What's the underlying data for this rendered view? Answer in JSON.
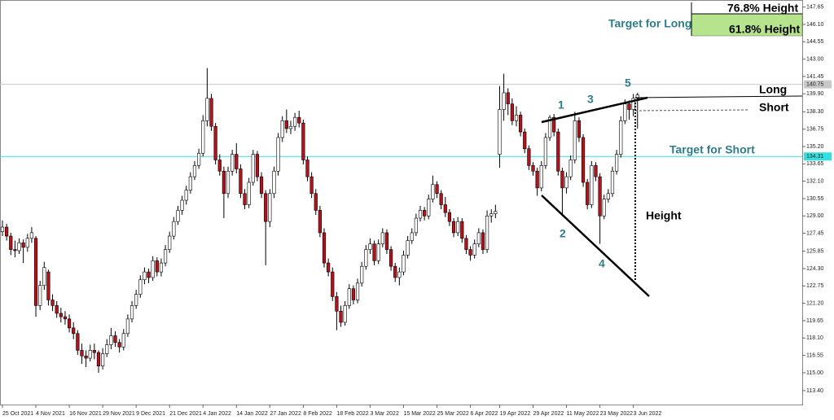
{
  "chart_data": {
    "type": "candlestick",
    "up_color": "#ffffff",
    "down_color": "#b5121b",
    "edge_color": "#000000",
    "ylim": [
      112.16,
      148.28
    ],
    "yticks": [
      147.65,
      {
        "value": 146.1,
        "label": "146.10"
      },
      144.55,
      {
        "value": 143,
        "label": "143.00"
      },
      141.45,
      {
        "value": 139.9,
        "label": "139.90"
      },
      {
        "value": 138.3,
        "label": "138.30"
      },
      136.75,
      {
        "value": 135.2,
        "label": "135.20"
      },
      133.65,
      {
        "value": 132.1,
        "label": "132.10"
      },
      130.55,
      {
        "value": 129,
        "label": "129.00"
      },
      127.45,
      125.85,
      {
        "value": 124.3,
        "label": "124.30"
      },
      122.75,
      {
        "value": 121.2,
        "label": "121.20"
      },
      119.65,
      {
        "value": 118.1,
        "label": "118.10"
      },
      116.55,
      {
        "value": 115,
        "label": "115.00"
      },
      {
        "value": 113.4,
        "label": "113.40"
      }
    ],
    "hlines": [
      {
        "value": 140.75,
        "color": "#c8c8c8"
      },
      {
        "value": 134.31,
        "color": "#33e0e0"
      }
    ],
    "categories": [
      "25 Oct 2021",
      null,
      null,
      null,
      null,
      null,
      null,
      null,
      "4 Nov 2021",
      null,
      null,
      null,
      null,
      null,
      null,
      null,
      "16 Nov 2021",
      null,
      null,
      null,
      null,
      null,
      null,
      null,
      "29 Nov 2021",
      null,
      null,
      null,
      null,
      null,
      null,
      null,
      "9 Dec 2021",
      null,
      null,
      null,
      null,
      null,
      null,
      null,
      "21 Dec 2021",
      null,
      null,
      null,
      null,
      null,
      null,
      null,
      "4 Jan 2022",
      null,
      null,
      null,
      null,
      null,
      null,
      null,
      "14 Jan 2022",
      null,
      null,
      null,
      null,
      null,
      null,
      null,
      "27 Jan 2022",
      null,
      null,
      null,
      null,
      null,
      null,
      null,
      "8 Feb 2022",
      null,
      null,
      null,
      null,
      null,
      null,
      null,
      "18 Feb 2022",
      null,
      null,
      null,
      null,
      null,
      null,
      null,
      "3 Mar 2022",
      null,
      null,
      null,
      null,
      null,
      null,
      null,
      "15 Mar 2022",
      null,
      null,
      null,
      null,
      null,
      null,
      null,
      "25 Mar 2022",
      null,
      null,
      null,
      null,
      null,
      null,
      null,
      "6 Apr 2022",
      null,
      null,
      null,
      null,
      null,
      null,
      "19 Apr 2022",
      null,
      null,
      null,
      null,
      null,
      null,
      null,
      "29 Apr 2022",
      null,
      null,
      null,
      null,
      null,
      null,
      null,
      "11 May 2022",
      null,
      null,
      null,
      null,
      null,
      null,
      null,
      "23 May 2022",
      null,
      null,
      null,
      null,
      null,
      null,
      null,
      "3 Jun 2022",
      null
    ],
    "ohlc": [
      [
        127.6,
        128.6,
        127.2,
        128.0
      ],
      [
        128.0,
        128.3,
        126.8,
        127.2
      ],
      [
        127.2,
        127.5,
        125.5,
        126.0
      ],
      [
        126.0,
        126.8,
        125.3,
        125.9
      ],
      [
        125.9,
        127.0,
        125.6,
        126.6
      ],
      [
        126.6,
        126.9,
        124.8,
        126.2
      ],
      [
        126.2,
        127.4,
        125.8,
        127.0
      ],
      [
        127.0,
        128.0,
        126.6,
        127.5
      ],
      [
        127.0,
        127.2,
        120.0,
        121.0
      ],
      [
        121.0,
        123.2,
        120.6,
        122.8
      ],
      [
        122.8,
        124.9,
        122.4,
        124.4
      ],
      [
        124.0,
        124.2,
        121.0,
        121.5
      ],
      [
        121.5,
        122.0,
        120.5,
        121.0
      ],
      [
        121.0,
        121.4,
        119.9,
        120.3
      ],
      [
        120.3,
        120.8,
        119.5,
        120.0
      ],
      [
        120.0,
        120.5,
        119.3,
        119.8
      ],
      [
        119.8,
        120.2,
        118.6,
        119.0
      ],
      [
        119.0,
        119.5,
        118.0,
        118.5
      ],
      [
        118.5,
        118.8,
        116.6,
        117.0
      ],
      [
        117.0,
        117.6,
        115.8,
        116.5
      ],
      [
        116.5,
        117.0,
        115.5,
        116.3
      ],
      [
        116.3,
        117.5,
        116.0,
        117.0
      ],
      [
        117.0,
        117.6,
        116.2,
        116.8
      ],
      [
        116.8,
        117.0,
        115.0,
        115.6
      ],
      [
        115.6,
        117.2,
        115.3,
        116.7
      ],
      [
        116.7,
        118.0,
        116.4,
        117.5
      ],
      [
        117.5,
        119.0,
        117.1,
        118.3
      ],
      [
        118.3,
        118.7,
        117.3,
        117.7
      ],
      [
        117.7,
        118.0,
        116.8,
        117.3
      ],
      [
        117.3,
        118.9,
        117.0,
        118.5
      ],
      [
        118.5,
        120.2,
        118.2,
        119.8
      ],
      [
        119.8,
        121.4,
        119.5,
        121.0
      ],
      [
        121.0,
        122.4,
        120.7,
        122.0
      ],
      [
        122.0,
        123.7,
        121.7,
        123.3
      ],
      [
        123.3,
        124.4,
        122.9,
        124.0
      ],
      [
        124.0,
        124.3,
        123.0,
        123.5
      ],
      [
        123.5,
        125.4,
        123.2,
        125.0
      ],
      [
        125.0,
        125.3,
        123.6,
        124.0
      ],
      [
        124.0,
        125.2,
        123.6,
        124.8
      ],
      [
        124.8,
        126.4,
        124.5,
        126.0
      ],
      [
        126.0,
        127.6,
        125.7,
        127.2
      ],
      [
        127.2,
        128.9,
        126.9,
        128.5
      ],
      [
        128.5,
        129.9,
        128.2,
        129.5
      ],
      [
        129.5,
        130.8,
        129.1,
        130.4
      ],
      [
        130.4,
        131.7,
        130.0,
        131.3
      ],
      [
        131.3,
        132.9,
        131.0,
        132.5
      ],
      [
        132.5,
        133.9,
        132.2,
        133.5
      ],
      [
        133.5,
        135.0,
        133.2,
        134.6
      ],
      [
        134.6,
        138.0,
        134.3,
        137.5
      ],
      [
        137.5,
        142.2,
        137.0,
        139.5
      ],
      [
        139.5,
        139.9,
        136.6,
        137.0
      ],
      [
        137.0,
        137.3,
        133.6,
        134.0
      ],
      [
        134.0,
        134.5,
        132.6,
        133.0
      ],
      [
        133.0,
        133.4,
        128.8,
        131.0
      ],
      [
        131.0,
        133.4,
        130.6,
        133.0
      ],
      [
        133.0,
        134.9,
        132.6,
        134.5
      ],
      [
        134.5,
        135.5,
        132.8,
        133.2
      ],
      [
        133.2,
        133.6,
        130.6,
        131.0
      ],
      [
        131.0,
        131.4,
        129.6,
        130.0
      ],
      [
        130.0,
        132.4,
        129.7,
        132.0
      ],
      [
        132.0,
        134.9,
        131.7,
        134.5
      ],
      [
        134.5,
        134.8,
        132.1,
        132.5
      ],
      [
        132.5,
        132.9,
        130.6,
        131.0
      ],
      [
        131.0,
        131.3,
        124.6,
        128.5
      ],
      [
        128.5,
        131.4,
        128.0,
        131.0
      ],
      [
        131.0,
        133.4,
        130.6,
        133.0
      ],
      [
        133.0,
        136.4,
        132.6,
        136.0
      ],
      [
        136.0,
        137.9,
        135.6,
        137.5
      ],
      [
        137.5,
        138.5,
        136.4,
        136.8
      ],
      [
        136.8,
        137.5,
        136.3,
        137.0
      ],
      [
        137.0,
        138.2,
        136.6,
        137.8
      ],
      [
        137.8,
        138.4,
        136.9,
        137.3
      ],
      [
        137.3,
        137.6,
        133.6,
        134.0
      ],
      [
        134.0,
        134.3,
        132.1,
        132.5
      ],
      [
        132.5,
        132.9,
        130.6,
        131.0
      ],
      [
        131.0,
        131.4,
        129.1,
        129.5
      ],
      [
        129.5,
        129.9,
        127.1,
        127.5
      ],
      [
        127.5,
        127.9,
        124.4,
        124.8
      ],
      [
        124.8,
        125.2,
        123.6,
        124.0
      ],
      [
        124.0,
        124.4,
        121.4,
        121.8
      ],
      [
        121.8,
        122.2,
        118.8,
        120.5
      ],
      [
        120.5,
        121.0,
        119.1,
        119.5
      ],
      [
        119.5,
        121.4,
        119.2,
        121.0
      ],
      [
        121.0,
        122.9,
        120.7,
        122.5
      ],
      [
        122.5,
        122.8,
        121.1,
        121.5
      ],
      [
        121.5,
        123.4,
        121.2,
        123.0
      ],
      [
        123.0,
        124.9,
        122.7,
        124.5
      ],
      [
        124.5,
        126.4,
        124.2,
        126.0
      ],
      [
        126.0,
        127.0,
        125.6,
        126.5
      ],
      [
        126.5,
        126.8,
        124.6,
        125.0
      ],
      [
        125.0,
        126.9,
        124.7,
        126.5
      ],
      [
        126.5,
        127.9,
        126.2,
        127.5
      ],
      [
        127.5,
        127.8,
        125.6,
        126.0
      ],
      [
        126.0,
        126.3,
        124.1,
        124.5
      ],
      [
        124.5,
        124.8,
        123.1,
        123.5
      ],
      [
        123.5,
        124.4,
        122.8,
        124.0
      ],
      [
        124.0,
        125.9,
        123.7,
        125.5
      ],
      [
        125.5,
        127.2,
        125.2,
        126.8
      ],
      [
        126.8,
        127.9,
        126.5,
        127.5
      ],
      [
        127.5,
        129.2,
        127.2,
        128.8
      ],
      [
        128.8,
        129.9,
        128.5,
        129.5
      ],
      [
        129.5,
        129.8,
        128.6,
        129.0
      ],
      [
        129.0,
        130.9,
        128.7,
        130.5
      ],
      [
        130.5,
        132.6,
        130.2,
        131.8
      ],
      [
        131.8,
        132.1,
        130.6,
        131.0
      ],
      [
        131.0,
        131.3,
        129.6,
        130.0
      ],
      [
        130.0,
        130.7,
        128.9,
        129.3
      ],
      [
        129.3,
        129.6,
        128.1,
        128.5
      ],
      [
        128.5,
        128.8,
        127.1,
        127.5
      ],
      [
        127.5,
        128.9,
        127.2,
        128.5
      ],
      [
        128.5,
        128.8,
        126.6,
        127.0
      ],
      [
        127.0,
        127.3,
        125.6,
        126.0
      ],
      [
        126.0,
        126.3,
        125.0,
        125.5
      ],
      [
        125.5,
        126.9,
        125.2,
        126.5
      ],
      [
        126.5,
        127.9,
        126.2,
        127.5
      ],
      [
        127.5,
        127.8,
        125.6,
        126.0
      ],
      [
        126.0,
        129.5,
        125.7,
        129.0
      ],
      [
        129.0,
        129.6,
        128.4,
        129.2
      ],
      [
        129.2,
        130.0,
        128.8,
        129.4
      ],
      [
        134.5,
        140.6,
        133.3,
        138.5
      ],
      [
        138.5,
        141.7,
        137.5,
        140.0
      ],
      [
        140.0,
        140.4,
        138.0,
        139.0
      ],
      [
        139.0,
        139.5,
        137.1,
        137.5
      ],
      [
        137.5,
        138.8,
        137.0,
        138.0
      ],
      [
        138.0,
        138.3,
        136.1,
        136.5
      ],
      [
        136.5,
        136.8,
        134.6,
        135.0
      ],
      [
        135.0,
        135.3,
        133.1,
        133.5
      ],
      [
        133.5,
        133.8,
        132.6,
        133.0
      ],
      [
        133.0,
        133.3,
        130.8,
        131.5
      ],
      [
        131.5,
        133.9,
        131.2,
        133.5
      ],
      [
        133.5,
        136.4,
        133.2,
        136.0
      ],
      [
        136.0,
        138.0,
        135.7,
        137.8
      ],
      [
        137.8,
        138.1,
        136.1,
        136.5
      ],
      [
        136.5,
        136.8,
        132.6,
        133.0
      ],
      [
        133.0,
        133.3,
        129.0,
        131.5
      ],
      [
        131.5,
        132.9,
        131.0,
        132.5
      ],
      [
        132.5,
        134.4,
        132.2,
        134.0
      ],
      [
        134.0,
        138.3,
        133.7,
        137.5
      ],
      [
        137.5,
        137.8,
        135.6,
        136.0
      ],
      [
        136.0,
        136.3,
        131.6,
        132.0
      ],
      [
        132.0,
        132.3,
        129.6,
        130.0
      ],
      [
        130.0,
        133.9,
        129.7,
        133.5
      ],
      [
        133.5,
        133.8,
        132.1,
        132.5
      ],
      [
        132.5,
        132.8,
        126.5,
        129.0
      ],
      [
        129.0,
        130.9,
        128.7,
        130.5
      ],
      [
        130.5,
        131.4,
        130.2,
        131.0
      ],
      [
        131.0,
        133.4,
        130.7,
        133.0
      ],
      [
        133.0,
        134.9,
        132.7,
        134.5
      ],
      [
        134.5,
        137.9,
        134.2,
        137.5
      ],
      [
        137.5,
        139.4,
        137.2,
        139.0
      ],
      [
        139.0,
        139.3,
        137.6,
        138.5
      ],
      [
        138.5,
        139.9,
        137.9,
        139.5
      ],
      [
        139.5,
        140.0,
        136.8,
        139.8
      ]
    ],
    "annotations": {
      "target_long": "Target for Long",
      "level_768": "76.8% Height",
      "level_618": "61.8% Height",
      "target_short": "Target for Short",
      "long": "Long",
      "short": "Short",
      "height": "Height",
      "waves": [
        "1",
        "2",
        "3",
        "4",
        "5"
      ]
    }
  }
}
